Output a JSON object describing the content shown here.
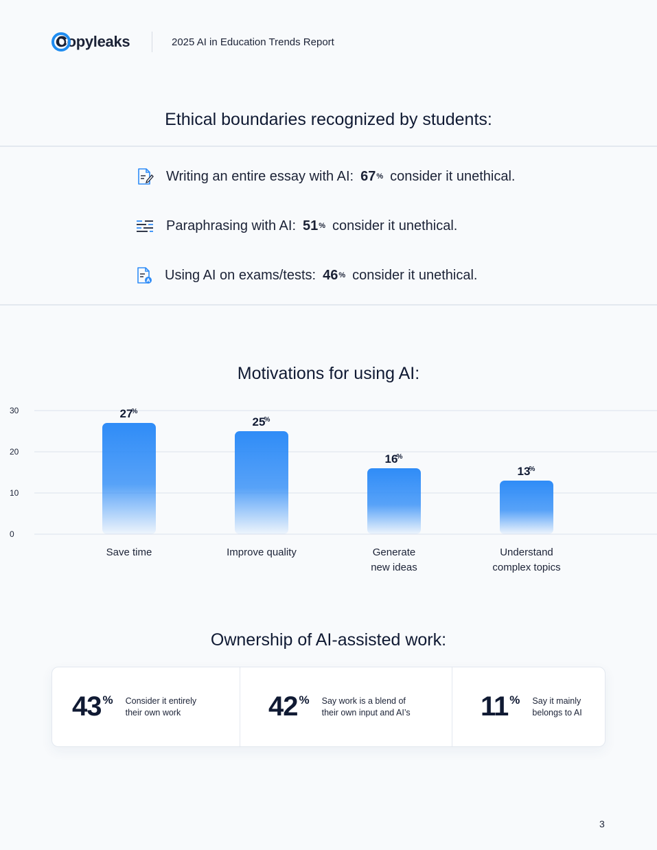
{
  "header": {
    "brand": "Copyleaks",
    "report_title": "2025 AI in Education Trends Report"
  },
  "ethical": {
    "title": "Ethical boundaries recognized by students:",
    "items": [
      {
        "icon": "essay-document-icon",
        "prefix": "Writing an entire essay with AI:",
        "value": "67",
        "pct": "%",
        "suffix": "consider it unethical."
      },
      {
        "icon": "paraphrase-lines-icon",
        "prefix": "Paraphrasing with AI:",
        "value": "51",
        "pct": "%",
        "suffix": "consider it unethical."
      },
      {
        "icon": "exam-document-icon",
        "prefix": "Using AI on exams/tests:",
        "value": "46",
        "pct": "%",
        "suffix": "consider it unethical."
      }
    ]
  },
  "motivations": {
    "title": "Motivations for using AI:"
  },
  "chart_data": {
    "type": "bar",
    "categories": [
      [
        "Save time"
      ],
      [
        "Improve quality"
      ],
      [
        "Generate",
        "new ideas"
      ],
      [
        "Understand",
        "complex topics"
      ]
    ],
    "values": [
      27,
      25,
      16,
      13
    ],
    "value_suffix": "%",
    "yticks": [
      0,
      10,
      20,
      30
    ],
    "ylim": [
      0,
      30
    ],
    "grid": true,
    "bar_color": "#2f8cf7"
  },
  "ownership": {
    "title": "Ownership of AI-assisted work:",
    "stats": [
      {
        "value": "43",
        "pct": "%",
        "line1": "Consider it entirely",
        "line2": "their own work"
      },
      {
        "value": "42",
        "pct": "%",
        "line1": "Say work is a blend of",
        "line2": "their own input and AI’s"
      },
      {
        "value": "11",
        "pct": "%",
        "line1": "Say it mainly",
        "line2": "belongs to AI"
      }
    ]
  },
  "page_number": "3"
}
